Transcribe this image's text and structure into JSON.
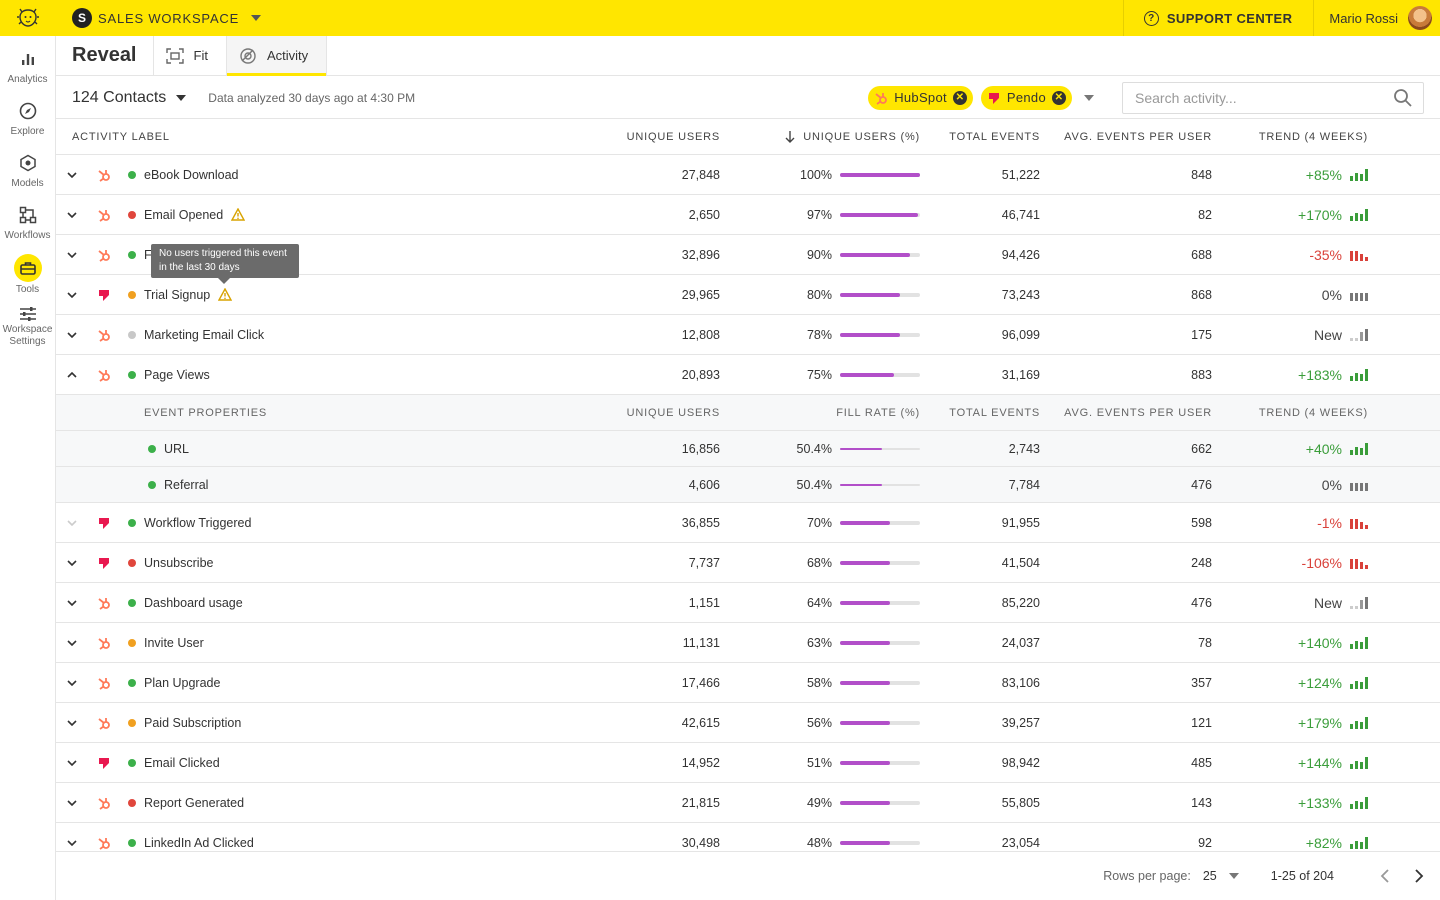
{
  "workspace": {
    "name": "SALES WORKSPACE",
    "logo_letter": "S"
  },
  "top_right": {
    "support_label": "SUPPORT CENTER",
    "user_name": "Mario Rossi"
  },
  "sidebar": {
    "items": [
      {
        "label": "Analytics",
        "icon": "bar-chart-icon"
      },
      {
        "label": "Explore",
        "icon": "compass-icon"
      },
      {
        "label": "Models",
        "icon": "cube-icon"
      },
      {
        "label": "Workflows",
        "icon": "workflow-icon"
      },
      {
        "label": "Tools",
        "icon": "toolbox-icon",
        "active": true
      },
      {
        "label": "Workspace Settings",
        "icon": "sliders-icon"
      }
    ]
  },
  "subheader": {
    "title": "Reveal",
    "tabs": [
      {
        "label": "Fit"
      },
      {
        "label": "Activity",
        "active": true
      }
    ]
  },
  "toolbar": {
    "contacts": "124 Contacts",
    "analyzed": "Data analyzed 30 days ago at 4:30 PM",
    "chips": [
      {
        "label": "HubSpot"
      },
      {
        "label": "Pendo"
      }
    ],
    "search_placeholder": "Search activity..."
  },
  "colors": {
    "accent": "#ffe600",
    "bar": "#b24fc9",
    "positive": "#3a9d3a",
    "negative": "#d9413a",
    "hubspot": "#ff7a59",
    "pendo": "#e8184f"
  },
  "table": {
    "headers": {
      "label": "ACTIVITY LABEL",
      "uu": "UNIQUE USERS",
      "pct": "UNIQUE USERS (%)",
      "te": "TOTAL EVENTS",
      "avg": "AVG. EVENTS PER USER",
      "trend": "TREND (4 WEEKS)"
    },
    "rows": [
      {
        "src": "hubspot",
        "status": "green",
        "label": "eBook Download",
        "uu": "27,848",
        "pct": "100%",
        "fill": 1.0,
        "te": "51,222",
        "avg": "848",
        "trend": "+85%",
        "dir": "pos"
      },
      {
        "src": "hubspot",
        "status": "red",
        "label": "Email Opened",
        "warn": true,
        "uu": "2,650",
        "pct": "97%",
        "fill": 0.97,
        "te": "46,741",
        "avg": "82",
        "trend": "+170%",
        "dir": "pos"
      },
      {
        "src": "hubspot",
        "status": "green",
        "label": "F",
        "uu": "32,896",
        "pct": "90%",
        "fill": 0.88,
        "te": "94,426",
        "avg": "688",
        "trend": "-35%",
        "dir": "neg"
      },
      {
        "src": "pendo",
        "status": "orange",
        "label": "Trial Signup",
        "warn": true,
        "uu": "29,965",
        "pct": "80%",
        "fill": 0.75,
        "te": "73,243",
        "avg": "868",
        "trend": "0%",
        "dir": "neu"
      },
      {
        "src": "hubspot",
        "status": "grey",
        "label": "Marketing Email Click",
        "uu": "12,808",
        "pct": "78%",
        "fill": 0.75,
        "te": "96,099",
        "avg": "175",
        "trend": "New",
        "dir": "new"
      },
      {
        "src": "hubspot",
        "status": "green",
        "label": "Page Views",
        "expanded": true,
        "uu": "20,893",
        "pct": "75%",
        "fill": 0.67,
        "te": "31,169",
        "avg": "883",
        "trend": "+183%",
        "dir": "pos"
      }
    ],
    "sub_headers": {
      "label": "EVENT PROPERTIES",
      "uu": "UNIQUE USERS",
      "pct": "FILL RATE (%)",
      "te": "TOTAL EVENTS",
      "avg": "AVG. EVENTS PER USER",
      "trend": "TREND (4 WEEKS)"
    },
    "sub_rows": [
      {
        "status": "green",
        "label": "URL",
        "uu": "16,856",
        "pct": "50.4%",
        "fill": 0.52,
        "te": "2,743",
        "avg": "662",
        "trend": "+40%",
        "dir": "pos"
      },
      {
        "status": "green",
        "label": "Referral",
        "uu": "4,606",
        "pct": "50.4%",
        "fill": 0.52,
        "te": "7,784",
        "avg": "476",
        "trend": "0%",
        "dir": "neu"
      }
    ],
    "rows2": [
      {
        "src": "pendo",
        "status": "green",
        "label": "Workflow Triggered",
        "faded": true,
        "uu": "36,855",
        "pct": "70%",
        "fill": 0.62,
        "te": "91,955",
        "avg": "598",
        "trend": "-1%",
        "dir": "neg"
      },
      {
        "src": "pendo",
        "status": "red",
        "label": "Unsubscribe",
        "uu": "7,737",
        "pct": "68%",
        "fill": 0.62,
        "te": "41,504",
        "avg": "248",
        "trend": "-106%",
        "dir": "neg"
      },
      {
        "src": "hubspot",
        "status": "green",
        "label": "Dashboard usage",
        "uu": "1,151",
        "pct": "64%",
        "fill": 0.62,
        "te": "85,220",
        "avg": "476",
        "trend": "New",
        "dir": "new"
      },
      {
        "src": "hubspot",
        "status": "orange",
        "label": "Invite User",
        "uu": "11,131",
        "pct": "63%",
        "fill": 0.62,
        "te": "24,037",
        "avg": "78",
        "trend": "+140%",
        "dir": "pos"
      },
      {
        "src": "hubspot",
        "status": "green",
        "label": "Plan Upgrade",
        "uu": "17,466",
        "pct": "58%",
        "fill": 0.62,
        "te": "83,106",
        "avg": "357",
        "trend": "+124%",
        "dir": "pos"
      },
      {
        "src": "hubspot",
        "status": "orange",
        "label": "Paid Subscription",
        "uu": "42,615",
        "pct": "56%",
        "fill": 0.62,
        "te": "39,257",
        "avg": "121",
        "trend": "+179%",
        "dir": "pos"
      },
      {
        "src": "pendo",
        "status": "green",
        "label": "Email Clicked",
        "uu": "14,952",
        "pct": "51%",
        "fill": 0.62,
        "te": "98,942",
        "avg": "485",
        "trend": "+144%",
        "dir": "pos"
      },
      {
        "src": "hubspot",
        "status": "red",
        "label": "Report Generated",
        "uu": "21,815",
        "pct": "49%",
        "fill": 0.62,
        "te": "55,805",
        "avg": "143",
        "trend": "+133%",
        "dir": "pos"
      },
      {
        "src": "hubspot",
        "status": "green",
        "label": "LinkedIn Ad Clicked",
        "uu": "30,498",
        "pct": "48%",
        "fill": 0.62,
        "te": "23,054",
        "avg": "92",
        "trend": "+82%",
        "dir": "pos"
      }
    ]
  },
  "tooltip": "No users triggered this event in the last 30 days",
  "footer": {
    "rows_per_page_label": "Rows per page:",
    "rows_per_page": "25",
    "range": "1-25 of 204"
  }
}
